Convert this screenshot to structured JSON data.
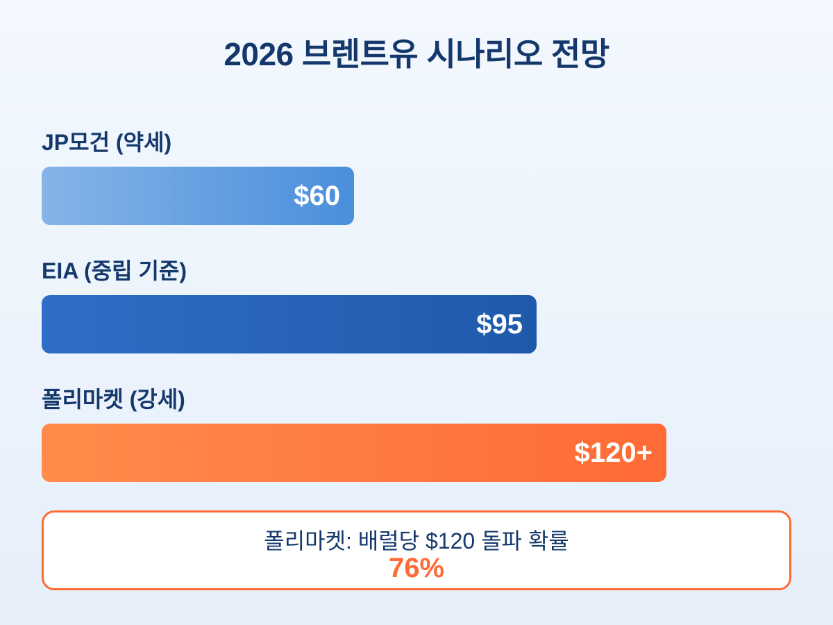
{
  "chart_data": {
    "type": "bar",
    "orientation": "horizontal",
    "title": "2026 브렌트유 시나리오 전망",
    "categories": [
      "JP모건 (약세)",
      "EIA (중립 기준)",
      "폴리마켓 (강세)"
    ],
    "values": [
      60,
      95,
      120
    ],
    "value_labels": [
      "$60",
      "$95",
      "$120+"
    ],
    "colors": [
      "#4a8fdb",
      "#1f5aaa",
      "#ff6b35"
    ],
    "xlim": [
      0,
      150
    ],
    "grid": false,
    "legend": "none"
  },
  "callout": {
    "text": "폴리마켓: 배럴당 $120 돌파 확률",
    "value": "76%"
  }
}
